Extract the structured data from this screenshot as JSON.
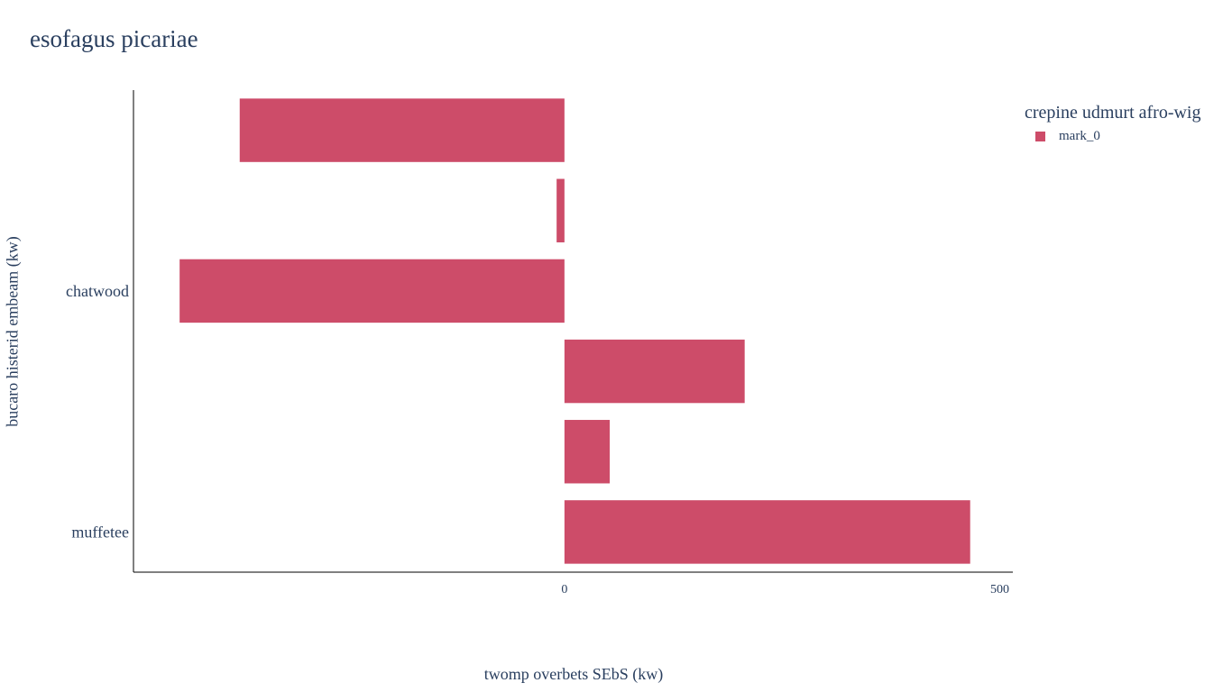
{
  "chart_data": {
    "type": "bar",
    "orientation": "horizontal",
    "title": "esofagus picariae",
    "xlabel": "twomp overbets SEbS (kw)",
    "ylabel": "bucaro histerid embeam (kw)",
    "xlim": [
      -495,
      515
    ],
    "x_ticks": [
      0,
      500
    ],
    "x_tick_labels": [
      "0",
      "500"
    ],
    "y_tick_labels": [
      {
        "category_index": 2,
        "label": "chatwood"
      },
      {
        "category_index": 5,
        "label": "muffetee"
      }
    ],
    "grid": false,
    "legend": {
      "title": "crepine udmurt afro-wig",
      "placement": "top-right"
    },
    "series": [
      {
        "name": "mark_0",
        "color": "#cd4c69",
        "values": [
          -373,
          -9,
          -442,
          207,
          52,
          466
        ]
      }
    ]
  }
}
